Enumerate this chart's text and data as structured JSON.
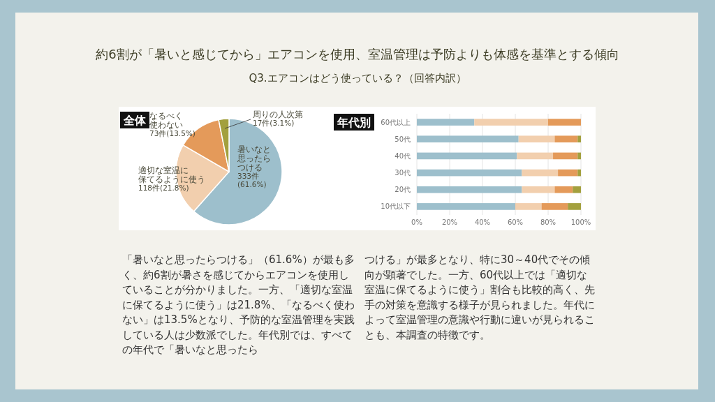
{
  "chart_data": [
    {
      "type": "pie",
      "title": "全体",
      "categories": [
        "暑いなと思ったらつける",
        "適切な室温に保てるように使う",
        "なるべく使わない",
        "周りの人次第"
      ],
      "values": [
        333,
        118,
        73,
        17
      ],
      "colors": [
        "#9dbfcc",
        "#f2cfae",
        "#e49a5a",
        "#a3a03e"
      ],
      "value_labels": [
        "333件(61.6%)",
        "118件(21.8%)",
        "73件(13.5%)",
        "17件(3.1%)"
      ]
    },
    {
      "type": "bar",
      "title": "年代別",
      "orientation": "horizontal",
      "stacked": true,
      "categories": [
        "60代以上",
        "50代",
        "40代",
        "30代",
        "20代",
        "10代以下"
      ],
      "series": [
        {
          "color": "#9dbfcc",
          "values": [
            35,
            62,
            61,
            64,
            64,
            60
          ]
        },
        {
          "color": "#f2cfae",
          "values": [
            45,
            22,
            22,
            22,
            20,
            16
          ]
        },
        {
          "color": "#e49a5a",
          "values": [
            20,
            14,
            15,
            12,
            11,
            16
          ]
        },
        {
          "color": "#a3a03e",
          "values": [
            0,
            2,
            2,
            2,
            5,
            8
          ]
        }
      ],
      "xlim": [
        0,
        100
      ],
      "xticks": [
        {
          "value": 0,
          "label": "0%"
        },
        {
          "value": 20,
          "label": "20%"
        },
        {
          "value": 40,
          "label": "40%"
        },
        {
          "value": 60,
          "label": "60%"
        },
        {
          "value": 80,
          "label": "80%"
        },
        {
          "value": 100,
          "label": "100%"
        }
      ],
      "grid": "x"
    },
    {
      "type": "other",
      "title": "約6割が「暑いと感じてから」エアコンを使用、室温管理は予防よりも体感を基準とする傾向",
      "subtitle": "Q3.エアコンはどう使っている？（回答内訳）",
      "annotations": [
        "「暑いなと思ったらつける」（61.6%）が最も多く、約6割が暑さを感じてからエアコンを使用していることが分かりました。一方、「適切な室温に保てるように使う」は21.8%、「なるべく使わない」は13.5%となり、予防的な室温管理を実践している人は少数派でした。年代別では、すべての年代で「暑いなと思ったら",
        "つける」が最多となり、特に30～40代でその傾向が顕著でした。一方、60代以上では「適切な室温に保てるように使う」割合も比較的高く、先手の対策を意識する様子が見られました。年代によって室温管理の意識や行動に違いが見られることも、本調査の特徴です。"
      ]
    }
  ]
}
